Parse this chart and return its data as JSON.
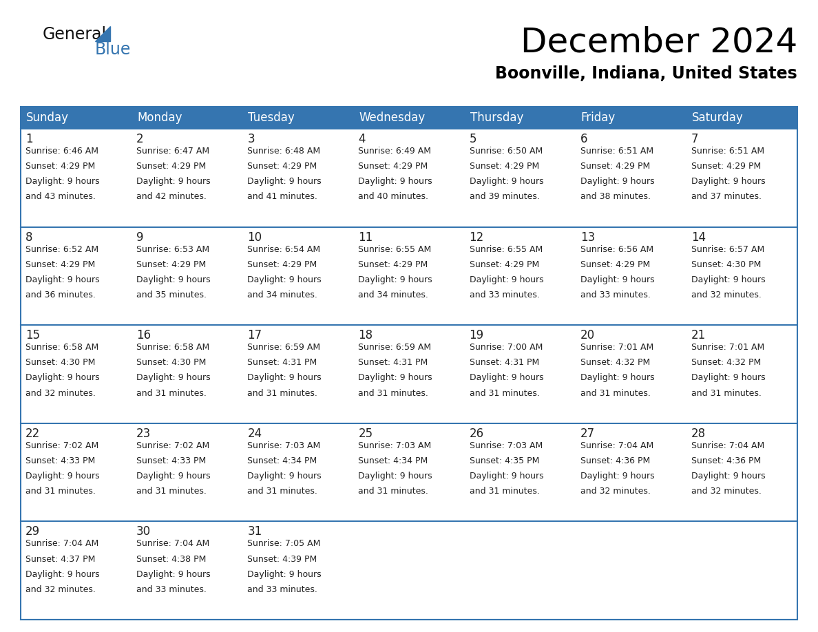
{
  "title": "December 2024",
  "subtitle": "Boonville, Indiana, United States",
  "header_color": "#3575b0",
  "header_text_color": "#ffffff",
  "cell_bg_color": "#ffffff",
  "row_sep_color": "#3575b0",
  "text_color": "#222222",
  "days_of_week": [
    "Sunday",
    "Monday",
    "Tuesday",
    "Wednesday",
    "Thursday",
    "Friday",
    "Saturday"
  ],
  "weeks": [
    [
      {
        "day": 1,
        "sunrise": "6:46 AM",
        "sunset": "4:29 PM",
        "daylight_h": "9 hours",
        "daylight_m": "and 43 minutes."
      },
      {
        "day": 2,
        "sunrise": "6:47 AM",
        "sunset": "4:29 PM",
        "daylight_h": "9 hours",
        "daylight_m": "and 42 minutes."
      },
      {
        "day": 3,
        "sunrise": "6:48 AM",
        "sunset": "4:29 PM",
        "daylight_h": "9 hours",
        "daylight_m": "and 41 minutes."
      },
      {
        "day": 4,
        "sunrise": "6:49 AM",
        "sunset": "4:29 PM",
        "daylight_h": "9 hours",
        "daylight_m": "and 40 minutes."
      },
      {
        "day": 5,
        "sunrise": "6:50 AM",
        "sunset": "4:29 PM",
        "daylight_h": "9 hours",
        "daylight_m": "and 39 minutes."
      },
      {
        "day": 6,
        "sunrise": "6:51 AM",
        "sunset": "4:29 PM",
        "daylight_h": "9 hours",
        "daylight_m": "and 38 minutes."
      },
      {
        "day": 7,
        "sunrise": "6:51 AM",
        "sunset": "4:29 PM",
        "daylight_h": "9 hours",
        "daylight_m": "and 37 minutes."
      }
    ],
    [
      {
        "day": 8,
        "sunrise": "6:52 AM",
        "sunset": "4:29 PM",
        "daylight_h": "9 hours",
        "daylight_m": "and 36 minutes."
      },
      {
        "day": 9,
        "sunrise": "6:53 AM",
        "sunset": "4:29 PM",
        "daylight_h": "9 hours",
        "daylight_m": "and 35 minutes."
      },
      {
        "day": 10,
        "sunrise": "6:54 AM",
        "sunset": "4:29 PM",
        "daylight_h": "9 hours",
        "daylight_m": "and 34 minutes."
      },
      {
        "day": 11,
        "sunrise": "6:55 AM",
        "sunset": "4:29 PM",
        "daylight_h": "9 hours",
        "daylight_m": "and 34 minutes."
      },
      {
        "day": 12,
        "sunrise": "6:55 AM",
        "sunset": "4:29 PM",
        "daylight_h": "9 hours",
        "daylight_m": "and 33 minutes."
      },
      {
        "day": 13,
        "sunrise": "6:56 AM",
        "sunset": "4:29 PM",
        "daylight_h": "9 hours",
        "daylight_m": "and 33 minutes."
      },
      {
        "day": 14,
        "sunrise": "6:57 AM",
        "sunset": "4:30 PM",
        "daylight_h": "9 hours",
        "daylight_m": "and 32 minutes."
      }
    ],
    [
      {
        "day": 15,
        "sunrise": "6:58 AM",
        "sunset": "4:30 PM",
        "daylight_h": "9 hours",
        "daylight_m": "and 32 minutes."
      },
      {
        "day": 16,
        "sunrise": "6:58 AM",
        "sunset": "4:30 PM",
        "daylight_h": "9 hours",
        "daylight_m": "and 31 minutes."
      },
      {
        "day": 17,
        "sunrise": "6:59 AM",
        "sunset": "4:31 PM",
        "daylight_h": "9 hours",
        "daylight_m": "and 31 minutes."
      },
      {
        "day": 18,
        "sunrise": "6:59 AM",
        "sunset": "4:31 PM",
        "daylight_h": "9 hours",
        "daylight_m": "and 31 minutes."
      },
      {
        "day": 19,
        "sunrise": "7:00 AM",
        "sunset": "4:31 PM",
        "daylight_h": "9 hours",
        "daylight_m": "and 31 minutes."
      },
      {
        "day": 20,
        "sunrise": "7:01 AM",
        "sunset": "4:32 PM",
        "daylight_h": "9 hours",
        "daylight_m": "and 31 minutes."
      },
      {
        "day": 21,
        "sunrise": "7:01 AM",
        "sunset": "4:32 PM",
        "daylight_h": "9 hours",
        "daylight_m": "and 31 minutes."
      }
    ],
    [
      {
        "day": 22,
        "sunrise": "7:02 AM",
        "sunset": "4:33 PM",
        "daylight_h": "9 hours",
        "daylight_m": "and 31 minutes."
      },
      {
        "day": 23,
        "sunrise": "7:02 AM",
        "sunset": "4:33 PM",
        "daylight_h": "9 hours",
        "daylight_m": "and 31 minutes."
      },
      {
        "day": 24,
        "sunrise": "7:03 AM",
        "sunset": "4:34 PM",
        "daylight_h": "9 hours",
        "daylight_m": "and 31 minutes."
      },
      {
        "day": 25,
        "sunrise": "7:03 AM",
        "sunset": "4:34 PM",
        "daylight_h": "9 hours",
        "daylight_m": "and 31 minutes."
      },
      {
        "day": 26,
        "sunrise": "7:03 AM",
        "sunset": "4:35 PM",
        "daylight_h": "9 hours",
        "daylight_m": "and 31 minutes."
      },
      {
        "day": 27,
        "sunrise": "7:04 AM",
        "sunset": "4:36 PM",
        "daylight_h": "9 hours",
        "daylight_m": "and 32 minutes."
      },
      {
        "day": 28,
        "sunrise": "7:04 AM",
        "sunset": "4:36 PM",
        "daylight_h": "9 hours",
        "daylight_m": "and 32 minutes."
      }
    ],
    [
      {
        "day": 29,
        "sunrise": "7:04 AM",
        "sunset": "4:37 PM",
        "daylight_h": "9 hours",
        "daylight_m": "and 32 minutes."
      },
      {
        "day": 30,
        "sunrise": "7:04 AM",
        "sunset": "4:38 PM",
        "daylight_h": "9 hours",
        "daylight_m": "and 33 minutes."
      },
      {
        "day": 31,
        "sunrise": "7:05 AM",
        "sunset": "4:39 PM",
        "daylight_h": "9 hours",
        "daylight_m": "and 33 minutes."
      },
      null,
      null,
      null,
      null
    ]
  ],
  "logo_color_general": "#111111",
  "logo_color_blue": "#3575b0",
  "title_fontsize": 36,
  "subtitle_fontsize": 17,
  "header_fontsize": 12,
  "day_num_fontsize": 12,
  "cell_fontsize": 9
}
